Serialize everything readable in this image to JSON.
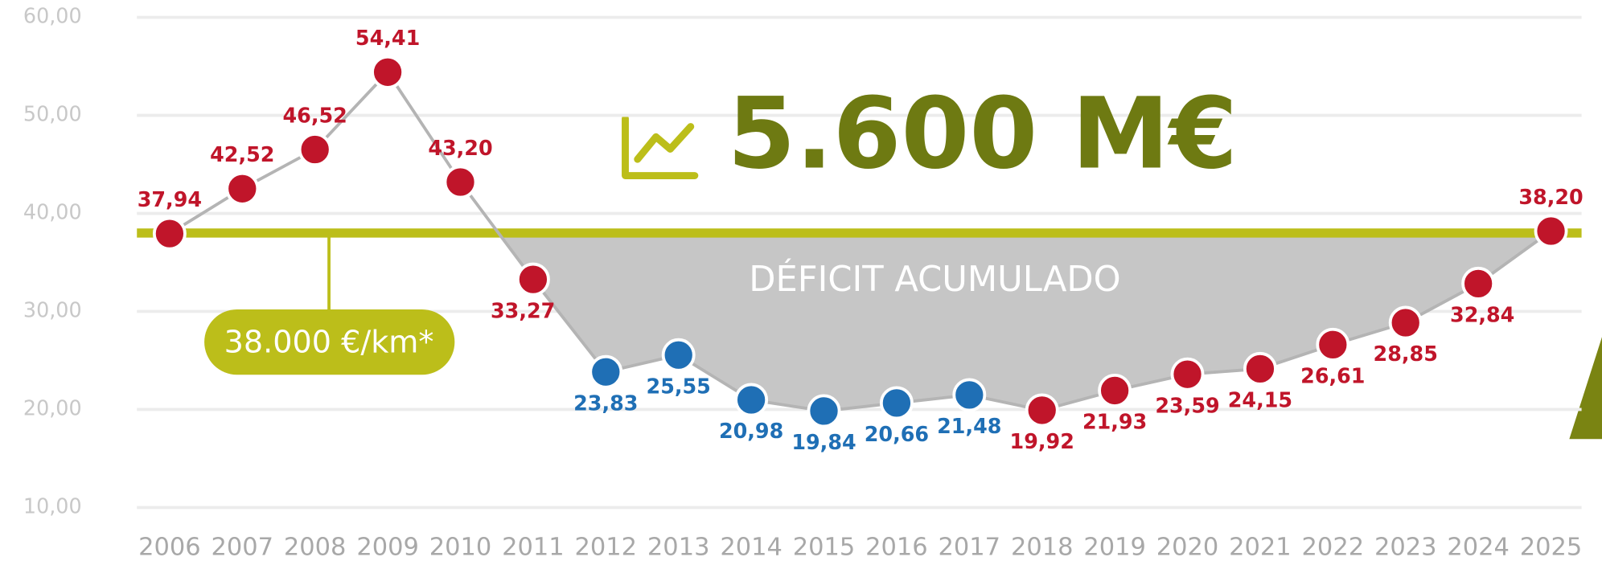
{
  "chart_data": {
    "type": "line",
    "title": "5.600 M€",
    "annotations": {
      "area": "DÉFICIT ACUMULADO",
      "threshold": "38.000 €/km*"
    },
    "threshold": 38,
    "threshold_color": "#bcbe1a",
    "area_color": "#c6c6c6",
    "categories": [
      "2006",
      "2007",
      "2008",
      "2009",
      "2010",
      "2011",
      "2012",
      "2013",
      "2014",
      "2015",
      "2016",
      "2017",
      "2018",
      "2019",
      "2020",
      "2021",
      "2022",
      "2023",
      "2024",
      "2025"
    ],
    "series": [
      {
        "color": "#b4b4b4",
        "values": [
          37.94,
          42.52,
          46.52,
          54.41,
          43.2,
          33.27,
          23.83,
          25.55,
          20.98,
          19.84,
          20.66,
          21.48,
          19.92,
          21.93,
          23.59,
          24.15,
          26.61,
          28.85,
          32.84,
          38.2
        ],
        "value_labels": [
          "37,94",
          "42,52",
          "46,52",
          "54,41",
          "43,20",
          "33,27",
          "23,83",
          "25,55",
          "20,98",
          "19,84",
          "20,66",
          "21,48",
          "19,92",
          "21,93",
          "23,59",
          "24,15",
          "26,61",
          "28,85",
          "32,84",
          "38,20"
        ],
        "point_colors": [
          "#c0152a",
          "#c0152a",
          "#c0152a",
          "#c0152a",
          "#c0152a",
          "#c0152a",
          "#1f6fb5",
          "#1f6fb5",
          "#1f6fb5",
          "#1f6fb5",
          "#1f6fb5",
          "#1f6fb5",
          "#c0152a",
          "#c0152a",
          "#c0152a",
          "#c0152a",
          "#c0152a",
          "#c0152a",
          "#c0152a",
          "#c0152a"
        ]
      }
    ],
    "ylim": [
      10,
      60
    ],
    "yticks": [
      {
        "value": 10,
        "label": "10,00"
      },
      {
        "value": 20,
        "label": "20,00"
      },
      {
        "value": 30,
        "label": "30,00"
      },
      {
        "value": 40,
        "label": "40,00"
      },
      {
        "value": 50,
        "label": "50,00"
      },
      {
        "value": 60,
        "label": "60,00"
      }
    ],
    "grid": true
  }
}
